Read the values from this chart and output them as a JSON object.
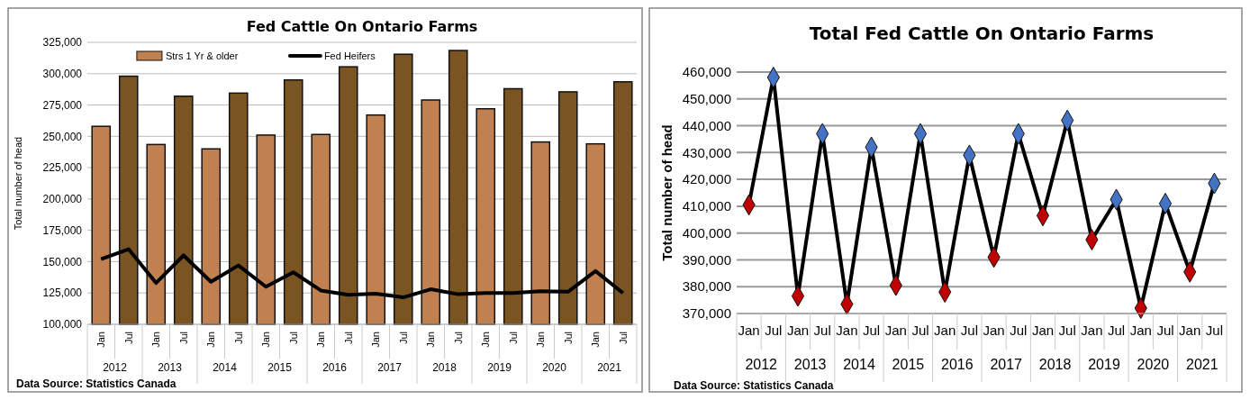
{
  "chart_data": [
    {
      "type": "bar",
      "title": "Fed Cattle On Ontario Farms",
      "ylabel": "Total number of head",
      "categories": [
        "Jan",
        "Jul",
        "Jan",
        "Jul",
        "Jan",
        "Jul",
        "Jan",
        "Jul",
        "Jan",
        "Jul",
        "Jan",
        "Jul",
        "Jan",
        "Jul",
        "Jan",
        "Jul",
        "Jan",
        "Jul",
        "Jan",
        "Jul"
      ],
      "series": [
        {
          "name": "Strs 1 Yr & older",
          "color": "#c08050",
          "colors": [
            "#c08050",
            "#7a5522",
            "#c08050",
            "#7a5522",
            "#c08050",
            "#7a5522",
            "#c08050",
            "#7a5522",
            "#c08050",
            "#7a5522",
            "#c08050",
            "#7a5522",
            "#c08050",
            "#7a5522",
            "#c08050",
            "#7a5522",
            "#c08050",
            "#7a5522",
            "#c08050",
            "#7a5522"
          ],
          "values": [
            258000,
            298000,
            243500,
            282000,
            240000,
            284500,
            251000,
            295000,
            251500,
            305500,
            267000,
            315500,
            279000,
            318500,
            272000,
            288000,
            245500,
            285500,
            244000,
            293500
          ]
        },
        {
          "name": "Fed Heifers",
          "type": "line",
          "color": "#000000",
          "values": [
            152000,
            160000,
            133000,
            155000,
            134000,
            147000,
            130000,
            141500,
            127000,
            123500,
            124500,
            121500,
            128000,
            124000,
            125000,
            125000,
            126500,
            126000,
            142500,
            125000
          ]
        }
      ],
      "ylim": [
        100000,
        325000
      ],
      "yticks": [
        {
          "value": 100000,
          "label": "100,000"
        },
        {
          "value": 125000,
          "label": "125,000"
        },
        {
          "value": 150000,
          "label": "150,000"
        },
        {
          "value": 175000,
          "label": "175,000"
        },
        {
          "value": 200000,
          "label": "200,000"
        },
        {
          "value": 225000,
          "label": "225,000"
        },
        {
          "value": 250000,
          "label": "250,000"
        },
        {
          "value": 275000,
          "label": "275,000"
        },
        {
          "value": 300000,
          "label": "300,000"
        },
        {
          "value": 325000,
          "label": "325,000"
        }
      ],
      "grid": "y",
      "legend": "top",
      "marker": "none",
      "line_style": "solid",
      "annotations": [
        "Data Source: Statistics Canada",
        "2012",
        "2013",
        "2014",
        "2015",
        "2016",
        "2017",
        "2018",
        "2019",
        "2020",
        "2021"
      ]
    },
    {
      "type": "line",
      "title": "Total Fed Cattle On Ontario Farms",
      "ylabel": "Total number of head",
      "categories": [
        "Jan",
        "Jul",
        "Jan",
        "Jul",
        "Jan",
        "Jul",
        "Jan",
        "Jul",
        "Jan",
        "Jul",
        "Jan",
        "Jul",
        "Jan",
        "Jul",
        "Jan",
        "Jul",
        "Jan",
        "Jul",
        "Jan",
        "Jul"
      ],
      "series": [
        {
          "color": "#000000",
          "colors": [
            "#c00000",
            "#4472c4",
            "#c00000",
            "#4472c4",
            "#c00000",
            "#4472c4",
            "#c00000",
            "#4472c4",
            "#c00000",
            "#4472c4",
            "#c00000",
            "#4472c4",
            "#c00000",
            "#4472c4",
            "#c00000",
            "#4472c4",
            "#c00000",
            "#4472c4",
            "#c00000",
            "#4472c4"
          ],
          "values": [
            410500,
            458000,
            376500,
            437000,
            373500,
            432000,
            380500,
            437000,
            378000,
            429000,
            391000,
            437000,
            406500,
            442000,
            397500,
            412500,
            372000,
            411000,
            385500,
            418500
          ]
        }
      ],
      "ylim": [
        370000,
        460000
      ],
      "yticks": [
        {
          "value": 370000,
          "label": "370,000"
        },
        {
          "value": 380000,
          "label": "380,000"
        },
        {
          "value": 390000,
          "label": "390,000"
        },
        {
          "value": 400000,
          "label": "400,000"
        },
        {
          "value": 410000,
          "label": "410,000"
        },
        {
          "value": 420000,
          "label": "420,000"
        },
        {
          "value": 430000,
          "label": "430,000"
        },
        {
          "value": 440000,
          "label": "440,000"
        },
        {
          "value": 450000,
          "label": "450,000"
        },
        {
          "value": 460000,
          "label": "460,000"
        }
      ],
      "grid": "y",
      "legend": false,
      "marker": "diamond",
      "line_style": "solid",
      "annotations": [
        "Data Source: Statistics Canada",
        "2012",
        "2013",
        "2014",
        "2015",
        "2016",
        "2017",
        "2018",
        "2019",
        "2020",
        "2021"
      ]
    }
  ]
}
